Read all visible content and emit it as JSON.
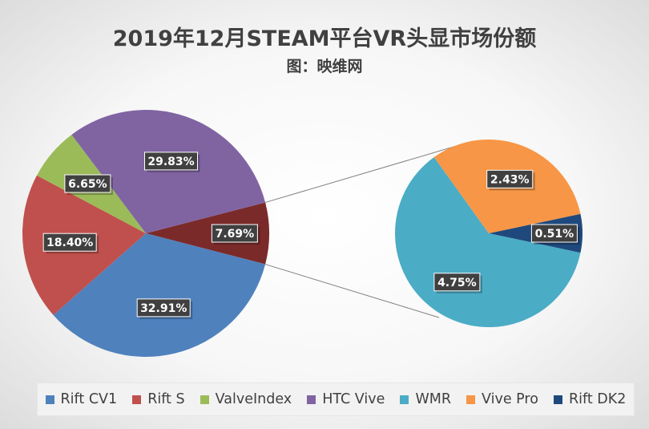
{
  "title": "2019年12月STEAM平台VR头显市场份额",
  "subtitle": "图：映维网",
  "chart_data": {
    "type": "pie",
    "title": "2019年12月STEAM平台VR头显市场份额",
    "subtitle": "图：映维网",
    "series": [
      {
        "name": "Rift CV1",
        "value": 32.91,
        "label": "32.91%",
        "color": "#4f81bd"
      },
      {
        "name": "Rift S",
        "value": 18.4,
        "label": "18.40%",
        "color": "#c0504d"
      },
      {
        "name": "ValveIndex",
        "value": 6.65,
        "label": "6.65%",
        "color": "#9bbb59"
      },
      {
        "name": "HTC Vive",
        "value": 29.83,
        "label": "29.83%",
        "color": "#8064a2"
      },
      {
        "name": "WMR",
        "value": 4.75,
        "label": "4.75%",
        "color": "#4bacc6"
      },
      {
        "name": "Vive Pro",
        "value": 2.43,
        "label": "2.43%",
        "color": "#f79646"
      },
      {
        "name": "Rift DK2",
        "value": 0.51,
        "label": "0.51%",
        "color": "#1f497d"
      }
    ],
    "other": {
      "value": 7.69,
      "label": "7.69%",
      "color": "#7b2a2a"
    },
    "breakout_members": [
      "WMR",
      "Vive Pro",
      "Rift DK2"
    ],
    "legend_position": "bottom"
  }
}
